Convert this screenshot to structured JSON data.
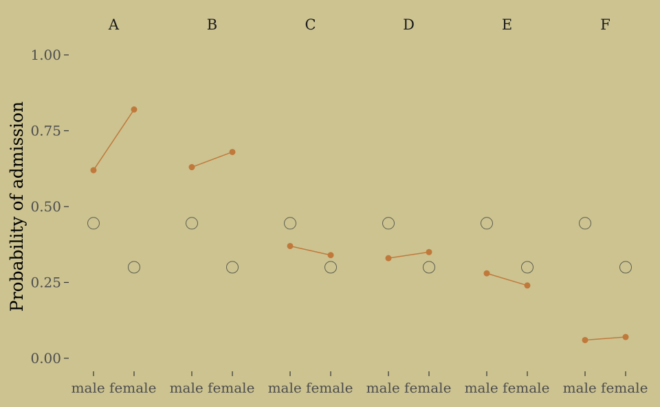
{
  "chart_data": {
    "type": "scatter",
    "ylabel": "Probability of admission",
    "xlabel": "",
    "ylim": [
      0,
      1
    ],
    "yticks": [
      "0.00",
      "0.25",
      "0.50",
      "0.75",
      "1.00"
    ],
    "ytick_values": [
      0,
      0.25,
      0.5,
      0.75,
      1.0
    ],
    "categories": [
      "male",
      "female"
    ],
    "panels": [
      "A",
      "B",
      "C",
      "D",
      "E",
      "F"
    ],
    "grid": false,
    "colors": {
      "observed": "#C0793A",
      "predicted": "#5c5c4c",
      "background": "#CCC391"
    },
    "series": [
      {
        "values": {
          "A": [
            0.62,
            0.82
          ],
          "B": [
            0.63,
            0.68
          ],
          "C": [
            0.37,
            0.34
          ],
          "D": [
            0.33,
            0.35
          ],
          "E": [
            0.28,
            0.24
          ],
          "F": [
            0.06,
            0.07
          ]
        }
      },
      {
        "values": {
          "A": [
            0.445,
            0.3
          ],
          "B": [
            0.445,
            0.3
          ],
          "C": [
            0.445,
            0.3
          ],
          "D": [
            0.445,
            0.3
          ],
          "E": [
            0.445,
            0.3
          ],
          "F": [
            0.445,
            0.3
          ]
        }
      }
    ]
  }
}
